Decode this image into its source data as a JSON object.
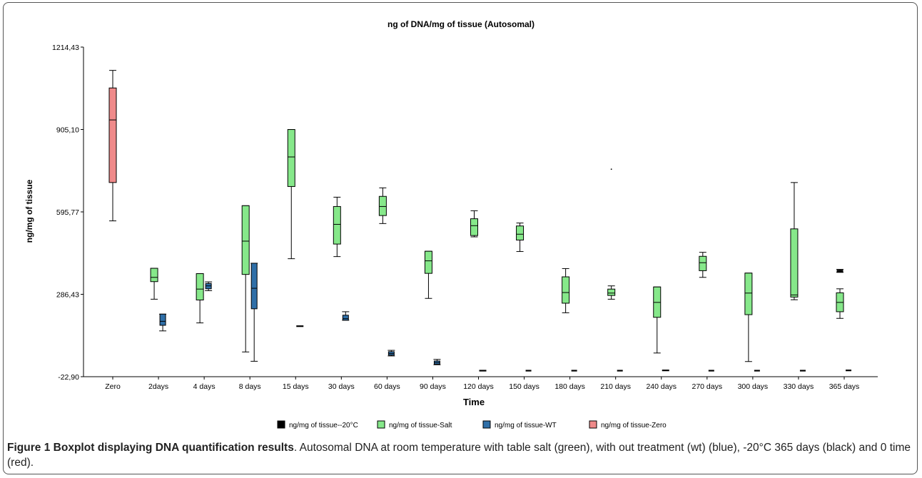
{
  "chart_data": {
    "type": "box",
    "title": "ng of DNA/mg of tissue (Autosomal)",
    "xlabel": "Time",
    "ylabel": "ng/mg of tissue",
    "ylim": [
      -22.9,
      1214.43
    ],
    "yticks": [
      "1214,43",
      "905,10",
      "595,77",
      "286,43",
      "-22,90"
    ],
    "ytick_values": [
      1214.43,
      905.1,
      595.77,
      286.43,
      -22.9
    ],
    "categories": [
      "Zero",
      "2days",
      "4 days",
      "8 days",
      "15 days",
      "30 days",
      "60 days",
      "90 days",
      "120 days",
      "150 days",
      "180 days",
      "210 days",
      "240 days",
      "270 days",
      "300 days",
      "330 days",
      "365 days"
    ],
    "grid": false,
    "legend_position": "bottom",
    "series": [
      {
        "name": "ng/mg of tissue--20°C",
        "color": "#000000",
        "boxes": [
          {
            "cat": 16,
            "min": 369,
            "q1": 369,
            "median": 373,
            "q3": 377,
            "max": 380
          }
        ]
      },
      {
        "name": "ng/mg of tissue-Salt",
        "color": "#86e88a",
        "boxes": [
          {
            "cat": 1,
            "min": 268,
            "q1": 334,
            "median": 350,
            "q3": 384,
            "max": 384
          },
          {
            "cat": 2,
            "min": 179,
            "q1": 265,
            "median": 306,
            "q3": 364,
            "max": 364
          },
          {
            "cat": 3,
            "min": 70,
            "q1": 361,
            "median": 486,
            "q3": 619,
            "max": 619
          },
          {
            "cat": 4,
            "min": 420,
            "q1": 691,
            "median": 802,
            "q3": 905,
            "max": 905
          },
          {
            "cat": 5,
            "min": 428,
            "q1": 475,
            "median": 549,
            "q3": 616,
            "max": 651
          },
          {
            "cat": 6,
            "min": 552,
            "q1": 582,
            "median": 616,
            "q3": 654,
            "max": 686
          },
          {
            "cat": 7,
            "min": 271,
            "q1": 365,
            "median": 412,
            "q3": 448,
            "max": 448
          },
          {
            "cat": 8,
            "min": 502,
            "q1": 507,
            "median": 544,
            "q3": 570,
            "max": 600
          },
          {
            "cat": 9,
            "min": 447,
            "q1": 490,
            "median": 512,
            "q3": 543,
            "max": 554
          },
          {
            "cat": 10,
            "min": 217,
            "q1": 253,
            "median": 293,
            "q3": 352,
            "max": 383
          },
          {
            "cat": 11,
            "min": 268,
            "q1": 282,
            "median": 291,
            "q3": 306,
            "max": 318
          },
          {
            "cat": 12,
            "min": 66,
            "q1": 200,
            "median": 256,
            "q3": 314,
            "max": 314
          },
          {
            "cat": 13,
            "min": 350,
            "q1": 375,
            "median": 405,
            "q3": 429,
            "max": 444
          },
          {
            "cat": 14,
            "min": 34,
            "q1": 210,
            "median": 291,
            "q3": 366,
            "max": 366
          },
          {
            "cat": 15,
            "min": 266,
            "q1": 276,
            "median": 284,
            "q3": 532,
            "max": 706
          },
          {
            "cat": 16,
            "min": 196,
            "q1": 221,
            "median": 256,
            "q3": 292,
            "max": 307
          }
        ]
      },
      {
        "name": "ng/mg of tissue-WT",
        "color": "#2f6fa8",
        "boxes": [
          {
            "cat": 1,
            "min": 149,
            "q1": 170,
            "median": 185,
            "q3": 212,
            "max": 212
          },
          {
            "cat": 2,
            "min": 300,
            "q1": 307,
            "median": 318,
            "q3": 327,
            "max": 333
          },
          {
            "cat": 3,
            "min": 35,
            "q1": 232,
            "median": 309,
            "q3": 403,
            "max": 403
          },
          {
            "cat": 5,
            "min": 189,
            "q1": 189,
            "median": 195,
            "q3": 208,
            "max": 221
          },
          {
            "cat": 6,
            "min": 55,
            "q1": 58,
            "median": 64,
            "q3": 71,
            "max": 76
          },
          {
            "cat": 7,
            "min": 22,
            "q1": 24,
            "median": 30,
            "q3": 36,
            "max": 42
          }
        ]
      },
      {
        "name": "ng/mg of tissue-Zero",
        "color": "#ef8a8a",
        "boxes": [
          {
            "cat": 0,
            "min": 562,
            "q1": 706,
            "median": 941,
            "q3": 1061,
            "max": 1127
          }
        ]
      }
    ],
    "near_zero_marks": [
      {
        "cat": 4,
        "value": 167,
        "width": "wide"
      },
      {
        "cat": 8,
        "value": 0,
        "width": "wide"
      },
      {
        "cat": 9,
        "value": 0,
        "width": "narrow"
      },
      {
        "cat": 10,
        "value": 0,
        "width": "narrow"
      },
      {
        "cat": 11,
        "value": 0,
        "width": "narrow"
      },
      {
        "cat": 12,
        "value": 1,
        "width": "wide"
      },
      {
        "cat": 13,
        "value": 0,
        "width": "narrow"
      },
      {
        "cat": 14,
        "value": 0,
        "width": "narrow"
      },
      {
        "cat": 15,
        "value": 0,
        "width": "narrow"
      },
      {
        "cat": 16,
        "value": 1,
        "width": "narrow"
      }
    ],
    "outliers": [
      {
        "cat": 11,
        "value": 756
      }
    ]
  },
  "caption": {
    "bold": "Figure 1 Boxplot displaying DNA quantification results",
    "text": ". Autosomal DNA at room temperature with table salt (green), with out treatment (wt) (blue), -20°C 365 days (black) and 0 time (red)."
  }
}
